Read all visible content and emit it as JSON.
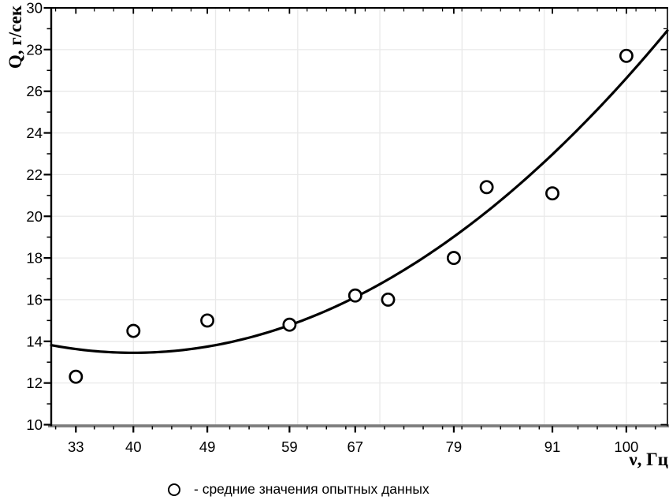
{
  "chart_data": {
    "type": "scatter",
    "title": "",
    "xlabel": "ν, Гц",
    "ylabel": "Q, г/сек",
    "xlim": [
      30,
      105
    ],
    "ylim": [
      10,
      30
    ],
    "x_ticks": [
      33,
      40,
      49,
      59,
      67,
      79,
      91,
      100
    ],
    "y_ticks": [
      10,
      12,
      14,
      16,
      18,
      20,
      22,
      24,
      26,
      28,
      30
    ],
    "x_gridlines": [
      40,
      50,
      60,
      70,
      80,
      90,
      100
    ],
    "y_gridlines": [
      12,
      14,
      16,
      18,
      20,
      22,
      24,
      26,
      28
    ],
    "grid": true,
    "legend_position": "bottom",
    "legend": {
      "marker": "open-circle",
      "label": "- средние значения опытных данных"
    },
    "series": [
      {
        "id": "experimental-means",
        "type": "scatter",
        "marker": "open-circle",
        "points": [
          [
            33,
            12.3
          ],
          [
            40,
            14.5
          ],
          [
            49,
            15.0
          ],
          [
            59,
            14.8
          ],
          [
            67,
            16.2
          ],
          [
            71,
            16.0
          ],
          [
            79,
            18.0
          ],
          [
            83,
            21.4
          ],
          [
            91,
            21.1
          ],
          [
            100,
            27.7
          ]
        ]
      },
      {
        "id": "quadratic-fit-curve",
        "type": "line",
        "fit": {
          "form": "k + a*(x-h)^2",
          "a": 0.00366,
          "h": 40,
          "k": 13.45
        },
        "x_range": [
          30,
          105
        ]
      }
    ]
  },
  "colors": {
    "curve": "#000000",
    "marker": "#000000",
    "marker_fill": "#ffffff",
    "grid": "#e9e9e9",
    "axis": "#000000",
    "bottom_axis": "#7c7c7c",
    "text": "#000000",
    "background": "#ffffff"
  }
}
